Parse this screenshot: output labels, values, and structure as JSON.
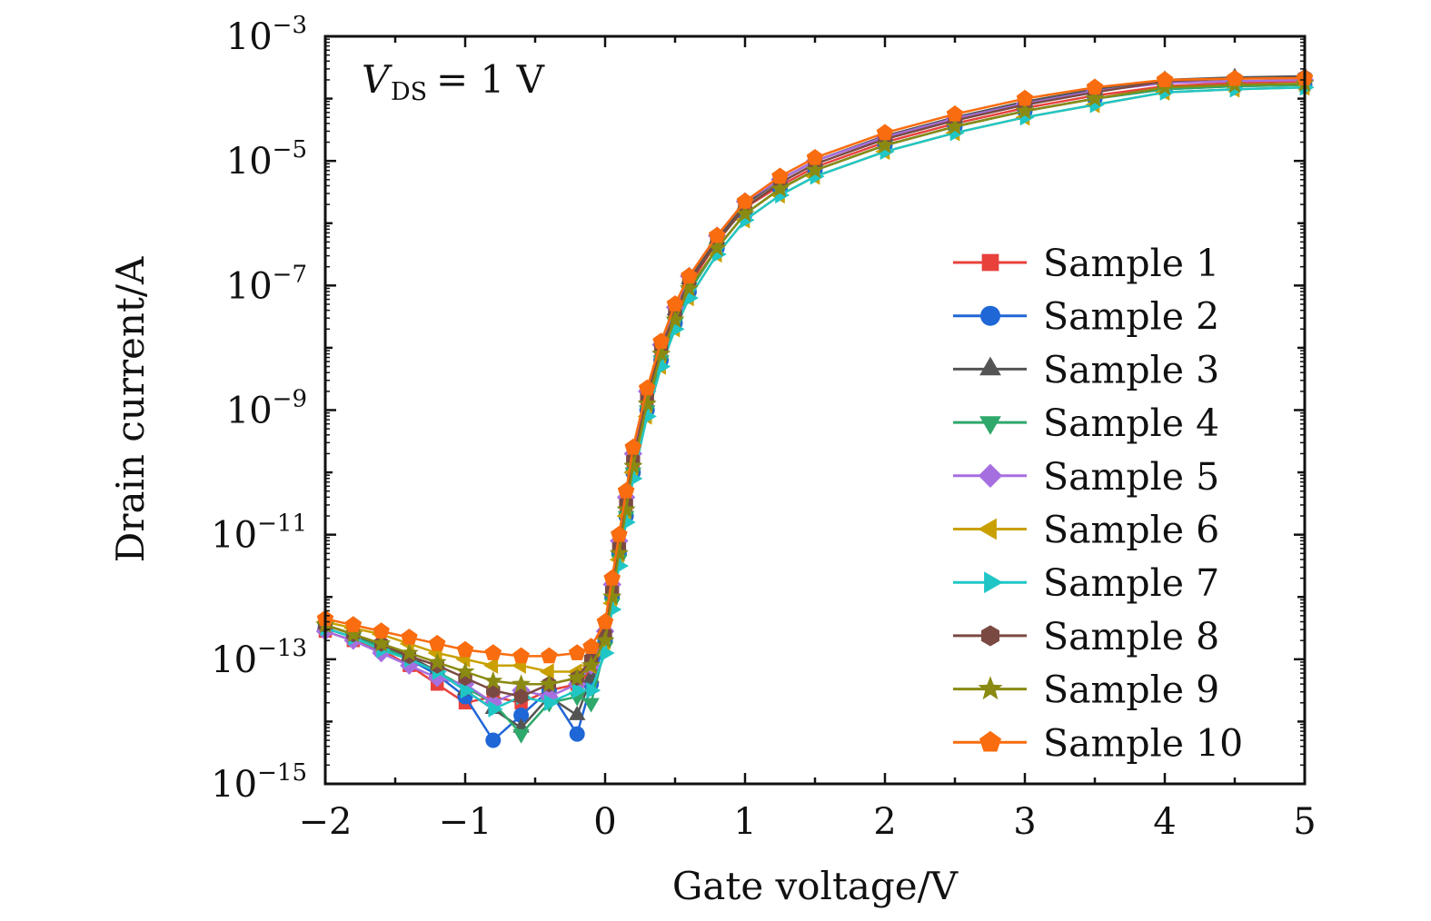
{
  "chart_data": {
    "type": "line",
    "xlabel": "Gate voltage/V",
    "ylabel": "Drain current/A",
    "annotation": {
      "symbol": "V",
      "subscript": "DS",
      "text": "= 1 V"
    },
    "x_ticks": [
      "−2",
      "−1",
      "0",
      "1",
      "2",
      "3",
      "4",
      "5"
    ],
    "y_ticks": [
      {
        "base": "10",
        "exp": "−3"
      },
      {
        "base": "10",
        "exp": "−5"
      },
      {
        "base": "10",
        "exp": "−7"
      },
      {
        "base": "10",
        "exp": "−9"
      },
      {
        "base": "10",
        "exp": "−11"
      },
      {
        "base": "10",
        "exp": "−13"
      },
      {
        "base": "10",
        "exp": "−15"
      }
    ],
    "xlim": [
      -2,
      5
    ],
    "ylim_log10": [
      -15,
      -3
    ],
    "yscale": "log",
    "legend_position": "right-middle",
    "x": [
      -2.0,
      -1.8,
      -1.6,
      -1.4,
      -1.2,
      -1.0,
      -0.8,
      -0.6,
      -0.4,
      -0.2,
      -0.1,
      0.0,
      0.05,
      0.1,
      0.15,
      0.2,
      0.3,
      0.4,
      0.5,
      0.6,
      0.8,
      1.0,
      1.25,
      1.5,
      2.0,
      2.5,
      3.0,
      3.5,
      4.0,
      4.5,
      5.0
    ],
    "series": [
      {
        "name": "Sample 1",
        "color": "#e8413c",
        "marker": "square",
        "values_log10": [
          -12.55,
          -12.7,
          -12.85,
          -13.1,
          -13.4,
          -13.7,
          -13.6,
          -13.7,
          -13.5,
          -13.4,
          -13.2,
          -12.6,
          -11.9,
          -11.2,
          -10.6,
          -9.9,
          -8.9,
          -8.1,
          -7.5,
          -7.0,
          -6.3,
          -5.75,
          -5.4,
          -5.1,
          -4.7,
          -4.4,
          -4.15,
          -3.95,
          -3.8,
          -3.75,
          -3.72
        ]
      },
      {
        "name": "Sample 2",
        "color": "#1f66d6",
        "marker": "circle",
        "values_log10": [
          -12.5,
          -12.65,
          -12.8,
          -13.0,
          -13.25,
          -13.6,
          -14.3,
          -13.9,
          -13.5,
          -14.2,
          -13.4,
          -12.7,
          -12.0,
          -11.3,
          -10.7,
          -10.0,
          -9.0,
          -8.2,
          -7.6,
          -7.1,
          -6.4,
          -5.85,
          -5.45,
          -5.15,
          -4.75,
          -4.45,
          -4.2,
          -4.0,
          -3.85,
          -3.8,
          -3.78
        ]
      },
      {
        "name": "Sample 3",
        "color": "#545454",
        "marker": "triangle-up",
        "values_log10": [
          -12.45,
          -12.6,
          -12.8,
          -12.95,
          -13.2,
          -13.5,
          -13.8,
          -14.1,
          -13.6,
          -13.9,
          -13.3,
          -12.6,
          -11.9,
          -11.2,
          -10.5,
          -9.8,
          -8.8,
          -8.0,
          -7.4,
          -6.9,
          -6.25,
          -5.7,
          -5.3,
          -5.0,
          -4.6,
          -4.3,
          -4.05,
          -3.85,
          -3.7,
          -3.66,
          -3.64
        ]
      },
      {
        "name": "Sample 4",
        "color": "#2ea86b",
        "marker": "triangle-down",
        "values_log10": [
          -12.5,
          -12.65,
          -12.8,
          -13.0,
          -13.2,
          -13.45,
          -13.7,
          -14.2,
          -13.7,
          -13.6,
          -13.7,
          -12.8,
          -12.1,
          -11.4,
          -10.7,
          -10.0,
          -9.0,
          -8.2,
          -7.6,
          -7.1,
          -6.4,
          -5.85,
          -5.45,
          -5.15,
          -4.75,
          -4.45,
          -4.2,
          -4.0,
          -3.85,
          -3.8,
          -3.78
        ]
      },
      {
        "name": "Sample 5",
        "color": "#a66fe0",
        "marker": "diamond",
        "values_log10": [
          -12.55,
          -12.7,
          -12.9,
          -13.1,
          -13.3,
          -13.4,
          -13.7,
          -13.5,
          -13.6,
          -13.4,
          -13.1,
          -12.55,
          -11.8,
          -11.1,
          -10.4,
          -9.7,
          -8.7,
          -7.95,
          -7.35,
          -6.85,
          -6.2,
          -5.65,
          -5.3,
          -5.0,
          -4.62,
          -4.32,
          -4.08,
          -3.88,
          -3.75,
          -3.72,
          -3.7
        ]
      },
      {
        "name": "Sample 6",
        "color": "#c9a000",
        "marker": "triangle-left",
        "values_log10": [
          -12.4,
          -12.5,
          -12.6,
          -12.75,
          -12.9,
          -13.0,
          -13.1,
          -13.1,
          -13.2,
          -13.2,
          -13.1,
          -12.8,
          -12.1,
          -11.4,
          -10.7,
          -10.0,
          -9.1,
          -8.3,
          -7.7,
          -7.2,
          -6.5,
          -5.95,
          -5.55,
          -5.25,
          -4.85,
          -4.55,
          -4.3,
          -4.1,
          -3.9,
          -3.85,
          -3.82
        ]
      },
      {
        "name": "Sample 7",
        "color": "#20c6c6",
        "marker": "triangle-right",
        "values_log10": [
          -12.5,
          -12.65,
          -12.85,
          -13.0,
          -13.2,
          -13.5,
          -13.8,
          -13.6,
          -13.7,
          -13.5,
          -13.5,
          -12.9,
          -12.2,
          -11.5,
          -10.8,
          -10.1,
          -9.1,
          -8.3,
          -7.7,
          -7.2,
          -6.5,
          -5.95,
          -5.55,
          -5.25,
          -4.85,
          -4.55,
          -4.3,
          -4.1,
          -3.9,
          -3.85,
          -3.82
        ]
      },
      {
        "name": "Sample 8",
        "color": "#7a4a42",
        "marker": "hexagon",
        "values_log10": [
          -12.45,
          -12.6,
          -12.75,
          -12.95,
          -13.1,
          -13.3,
          -13.5,
          -13.6,
          -13.4,
          -13.3,
          -13.0,
          -12.6,
          -11.9,
          -11.2,
          -10.5,
          -9.8,
          -8.8,
          -8.0,
          -7.45,
          -6.95,
          -6.3,
          -5.75,
          -5.35,
          -5.05,
          -4.65,
          -4.35,
          -4.1,
          -3.9,
          -3.72,
          -3.68,
          -3.66
        ]
      },
      {
        "name": "Sample 9",
        "color": "#8a8a12",
        "marker": "star",
        "values_log10": [
          -12.45,
          -12.6,
          -12.75,
          -12.9,
          -13.05,
          -13.2,
          -13.35,
          -13.4,
          -13.4,
          -13.3,
          -13.1,
          -12.7,
          -12.0,
          -11.3,
          -10.6,
          -9.9,
          -8.9,
          -8.1,
          -7.55,
          -7.05,
          -6.4,
          -5.85,
          -5.45,
          -5.15,
          -4.75,
          -4.45,
          -4.2,
          -4.0,
          -3.82,
          -3.78,
          -3.76
        ]
      },
      {
        "name": "Sample 10",
        "color": "#f96c0f",
        "marker": "pentagon",
        "values_log10": [
          -12.35,
          -12.45,
          -12.55,
          -12.65,
          -12.75,
          -12.85,
          -12.9,
          -12.95,
          -12.95,
          -12.9,
          -12.8,
          -12.4,
          -11.7,
          -11.0,
          -10.3,
          -9.6,
          -8.65,
          -7.9,
          -7.3,
          -6.85,
          -6.2,
          -5.65,
          -5.25,
          -4.95,
          -4.55,
          -4.25,
          -4.0,
          -3.82,
          -3.7,
          -3.68,
          -3.67
        ]
      }
    ]
  }
}
